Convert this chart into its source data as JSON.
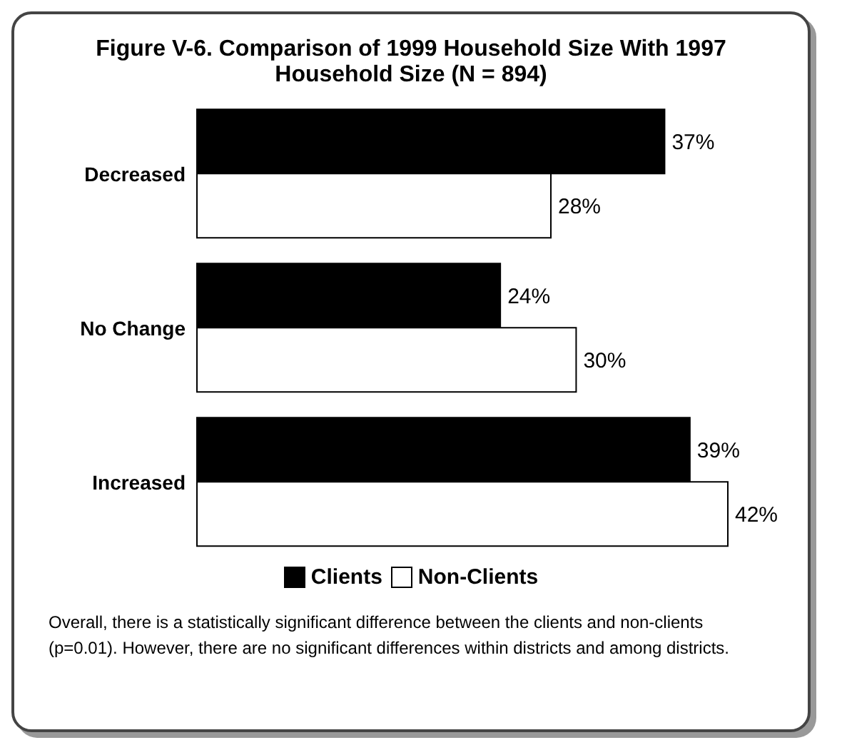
{
  "chart_data": {
    "type": "bar",
    "orientation": "horizontal",
    "title": "Figure V-6.  Comparison of 1999 Household Size With 1997 Household Size (N = 894)",
    "categories": [
      "Decreased",
      "No Change",
      "Increased"
    ],
    "series": [
      {
        "name": "Clients",
        "color": "#000000",
        "values": [
          37,
          24,
          39
        ],
        "value_labels": [
          "37%",
          "24%",
          "39%"
        ]
      },
      {
        "name": "Non-Clients",
        "color": "#ffffff",
        "values": [
          28,
          30,
          42
        ],
        "value_labels": [
          "28%",
          "30%",
          "42%"
        ]
      }
    ],
    "legend": "bottom",
    "grid": false,
    "annotations": [
      "Overall, there is a statistically significant difference between the clients and non-clients (p=0.01). However, there are no significant differences within districts and among districts."
    ]
  }
}
